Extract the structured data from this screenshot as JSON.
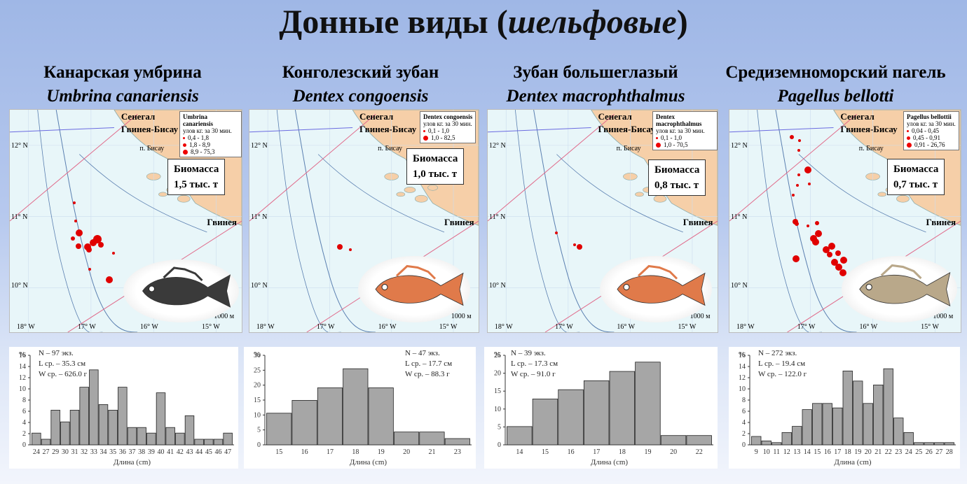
{
  "title": {
    "main": "Донные виды (",
    "italic": "шельфовые",
    "close": ")"
  },
  "species": [
    {
      "ru": "Канарская умбрина",
      "lat": "Umbrina canariensis",
      "legend": {
        "name": "Umbrina canariensis",
        "unit": "улов кг. за 30 мин.",
        "rows": [
          "0,4 - 1,8",
          "1,8 - 8,9",
          "8,9 - 75,3"
        ]
      },
      "biomass": [
        "Биомасса",
        "1,5 тыс. т"
      ],
      "stats": [
        "N – 97 экз.",
        "L ср. – 35.3 см",
        "W ср. – 626.0 г"
      ]
    },
    {
      "ru": "Конголезский зубан",
      "lat": "Dentex congoensis",
      "legend": {
        "name": "Dentex congoensis",
        "unit": "улов кг. за 30 мин.",
        "rows": [
          "0,1 - 1,0",
          "1,0 - 82,5"
        ]
      },
      "biomass": [
        "Биомасса",
        "1,0 тыс. т"
      ],
      "stats": [
        "N – 47 экз.",
        "L ср. – 17.7 см",
        "W ср. – 88.3 г"
      ]
    },
    {
      "ru": "Зубан большеглазый",
      "lat": "Dentex macrophthalmus",
      "legend": {
        "name": "Dentex macrophthalmus",
        "unit": "улов кг. за 30 мин.",
        "rows": [
          "0,1 - 1,0",
          "1,0 - 70,5"
        ]
      },
      "biomass": [
        "Биомасса",
        "0,8 тыс. т"
      ],
      "stats": [
        "N – 39 экз.",
        "L ср. – 17.3 см",
        "W ср. – 91.0 г"
      ]
    },
    {
      "ru": "Средиземноморский пагель",
      "lat": "Pagellus bellotti",
      "legend": {
        "name": "Pagellus bellottii",
        "unit": "улов кг. за 30 мин.",
        "rows": [
          "0,04 - 0,45",
          "0,45 - 0,91",
          "0,91 - 26,76"
        ]
      },
      "biomass": [
        "Биомасса",
        "0,7 тыс. т"
      ],
      "stats": [
        "N – 272 экз.",
        "L ср. – 19.4 см",
        "W ср. – 122.0 г"
      ]
    }
  ],
  "map_labels": {
    "senegal": "Сенегал",
    "guinea_bissau": "Гвинея-Бисау",
    "bissau": "п. Бисау",
    "guinea": "Гвинея",
    "lat": [
      "12° N",
      "11° N",
      "10° N"
    ],
    "lon": [
      "18° W",
      "17° W",
      "16° W",
      "15° W"
    ],
    "depth": "1000 м"
  },
  "chart_data": [
    {
      "type": "bar",
      "ylabel": "%",
      "xlabel": "Длина (cm)",
      "ylim": [
        0,
        16
      ],
      "yticks": [
        "0",
        "2",
        "4",
        "6",
        "8",
        "10",
        "12",
        "14",
        "16"
      ],
      "categories": [
        "24",
        "27",
        "29",
        "30",
        "31",
        "32",
        "33",
        "34",
        "35",
        "36",
        "37",
        "38",
        "39",
        "40",
        "41",
        "42",
        "43",
        "44",
        "45",
        "46",
        "47"
      ],
      "values": [
        2.1,
        1.0,
        6.2,
        4.1,
        6.2,
        10.3,
        13.4,
        7.2,
        6.2,
        10.3,
        3.1,
        3.1,
        2.1,
        9.3,
        3.1,
        2.1,
        5.2,
        1.0,
        1.0,
        1.0,
        2.1
      ]
    },
    {
      "type": "bar",
      "ylabel": "%",
      "xlabel": "Длина (cm)",
      "ylim": [
        0,
        30
      ],
      "yticks": [
        "0",
        "5",
        "10",
        "15",
        "20",
        "25",
        "30"
      ],
      "categories": [
        "15",
        "16",
        "17",
        "18",
        "19",
        "20",
        "21",
        "23"
      ],
      "values": [
        10.6,
        14.9,
        19.1,
        25.5,
        19.1,
        4.3,
        4.3,
        2.1
      ]
    },
    {
      "type": "bar",
      "ylabel": "%",
      "xlabel": "Длина (cm)",
      "ylim": [
        0,
        25
      ],
      "yticks": [
        "0",
        "5",
        "10",
        "15",
        "20",
        "25"
      ],
      "categories": [
        "14",
        "15",
        "16",
        "17",
        "18",
        "19",
        "20",
        "22"
      ],
      "values": [
        5.1,
        12.8,
        15.4,
        17.9,
        20.5,
        23.1,
        2.6,
        2.6
      ]
    },
    {
      "type": "bar",
      "ylabel": "%",
      "xlabel": "Длина (cm)",
      "ylim": [
        0,
        16
      ],
      "yticks": [
        "0",
        "2",
        "4",
        "6",
        "8",
        "10",
        "12",
        "14",
        "16"
      ],
      "categories": [
        "9",
        "10",
        "11",
        "12",
        "13",
        "14",
        "15",
        "16",
        "17",
        "18",
        "19",
        "20",
        "21",
        "22",
        "23",
        "24",
        "25",
        "26",
        "27",
        "28"
      ],
      "values": [
        1.5,
        0.7,
        0.4,
        2.2,
        3.3,
        6.3,
        7.4,
        7.4,
        6.6,
        13.2,
        11.4,
        7.4,
        10.7,
        13.6,
        4.8,
        2.2,
        0.4,
        0.4,
        0.4,
        0.4
      ]
    }
  ],
  "colors": {
    "catch": "#e00000",
    "bar": "#a6a6a6",
    "land": "#f6cfa8",
    "sea": "#e8f6f9"
  }
}
